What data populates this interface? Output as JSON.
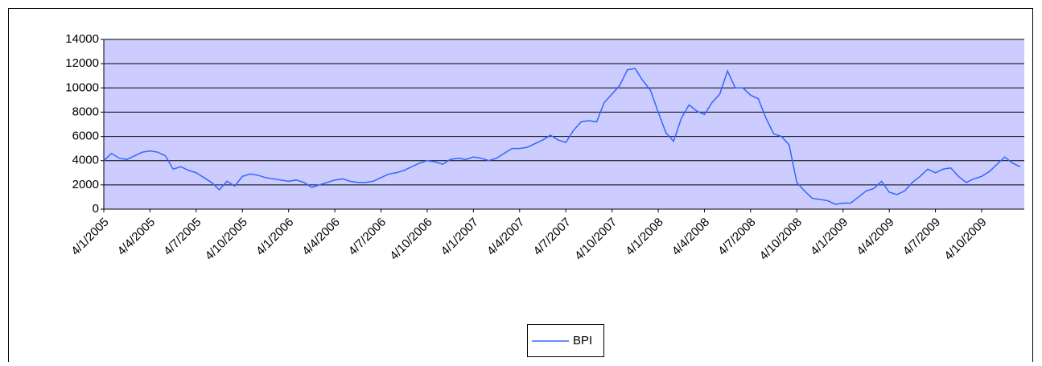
{
  "chart_data": {
    "type": "line",
    "categories": [
      "4/1/2005",
      null,
      null,
      null,
      null,
      null,
      "4/4/2005",
      null,
      null,
      null,
      null,
      null,
      "4/7/2005",
      null,
      null,
      null,
      null,
      null,
      "4/10/2005",
      null,
      null,
      null,
      null,
      null,
      "4/1/2006",
      null,
      null,
      null,
      null,
      null,
      "4/4/2006",
      null,
      null,
      null,
      null,
      null,
      "4/7/2006",
      null,
      null,
      null,
      null,
      null,
      "4/10/2006",
      null,
      null,
      null,
      null,
      null,
      "4/1/2007",
      null,
      null,
      null,
      null,
      null,
      "4/4/2007",
      null,
      null,
      null,
      null,
      null,
      "4/7/2007",
      null,
      null,
      null,
      null,
      null,
      "4/10/2007",
      null,
      null,
      null,
      null,
      null,
      "4/1/2008",
      null,
      null,
      null,
      null,
      null,
      "4/4/2008",
      null,
      null,
      null,
      null,
      null,
      "4/7/2008",
      null,
      null,
      null,
      null,
      null,
      "4/10/2008",
      null,
      null,
      null,
      null,
      null,
      "4/1/2009",
      null,
      null,
      null,
      null,
      null,
      "4/4/2009",
      null,
      null,
      null,
      null,
      null,
      "4/7/2009",
      null,
      null,
      null,
      null,
      null,
      "4/10/2009",
      null,
      null,
      null,
      null,
      null
    ],
    "series": [
      {
        "name": "BPI",
        "color": "#3366ff",
        "values": [
          4000,
          4600,
          4200,
          4100,
          4400,
          4700,
          4800,
          4700,
          4400,
          3300,
          3500,
          3200,
          3000,
          2600,
          2200,
          1600,
          2300,
          1900,
          2700,
          2900,
          2800,
          2600,
          2500,
          2400,
          2300,
          2400,
          2200,
          1800,
          2000,
          2200,
          2400,
          2500,
          2300,
          2200,
          2200,
          2300,
          2600,
          2900,
          3000,
          3200,
          3500,
          3800,
          4000,
          3900,
          3700,
          4100,
          4200,
          4100,
          4300,
          4200,
          4000,
          4200,
          4600,
          5000,
          5000,
          5100,
          5400,
          5700,
          6100,
          5700,
          5500,
          6500,
          7200,
          7300,
          7200,
          8800,
          9500,
          10200,
          11500,
          11600,
          10600,
          9800,
          8000,
          6300,
          5600,
          7500,
          8600,
          8100,
          7800,
          8800,
          9500,
          11400,
          10000,
          10000,
          9400,
          9100,
          7500,
          6200,
          6000,
          5300,
          2200,
          1500,
          900,
          800,
          700,
          400,
          500,
          500,
          1000,
          1500,
          1700,
          2300,
          1400,
          1200,
          1500,
          2200,
          2700,
          3300,
          3000,
          3300,
          3400,
          2700,
          2200,
          2500,
          2700,
          3100,
          3700,
          4300,
          3800,
          3500
        ]
      }
    ],
    "ylim": [
      0,
      14000
    ],
    "yticks": [
      0,
      2000,
      4000,
      6000,
      8000,
      10000,
      12000,
      14000
    ],
    "grid": true,
    "legend": "bottom"
  }
}
